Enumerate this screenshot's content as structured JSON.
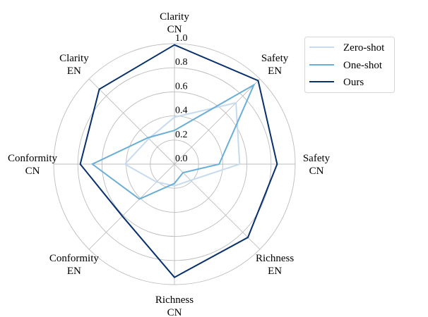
{
  "chart_data": {
    "type": "radar",
    "title": "",
    "axes": [
      {
        "line1": "Clarity",
        "line2": "CN"
      },
      {
        "line1": "Safety",
        "line2": "EN"
      },
      {
        "line1": "Safety",
        "line2": "CN"
      },
      {
        "line1": "Richness",
        "line2": "EN"
      },
      {
        "line1": "Richness",
        "line2": "CN"
      },
      {
        "line1": "Conformity",
        "line2": "EN"
      },
      {
        "line1": "Conformity",
        "line2": "CN"
      },
      {
        "line1": "Clarity",
        "line2": "EN"
      }
    ],
    "rlim": [
      0.0,
      1.0
    ],
    "r_ticks": [
      "0.0",
      "0.2",
      "0.4",
      "0.6",
      "0.8",
      "1.0"
    ],
    "r_tick_values": [
      0.0,
      0.2,
      0.4,
      0.6,
      0.8,
      1.0
    ],
    "grid": true,
    "legend_position": "top-right",
    "series": [
      {
        "name": "Zero-shot",
        "color": "#c6dbef",
        "values": [
          0.39,
          0.72,
          0.54,
          0.19,
          0.18,
          0.21,
          0.41,
          0.3
        ]
      },
      {
        "name": "One-shot",
        "color": "#6baed6",
        "values": [
          0.28,
          0.93,
          0.37,
          0.1,
          0.16,
          0.41,
          0.68,
          0.31
        ]
      },
      {
        "name": "Ours",
        "color": "#08306b",
        "values": [
          0.99,
          0.98,
          0.85,
          0.86,
          0.94,
          0.61,
          0.78,
          0.88
        ]
      }
    ]
  }
}
